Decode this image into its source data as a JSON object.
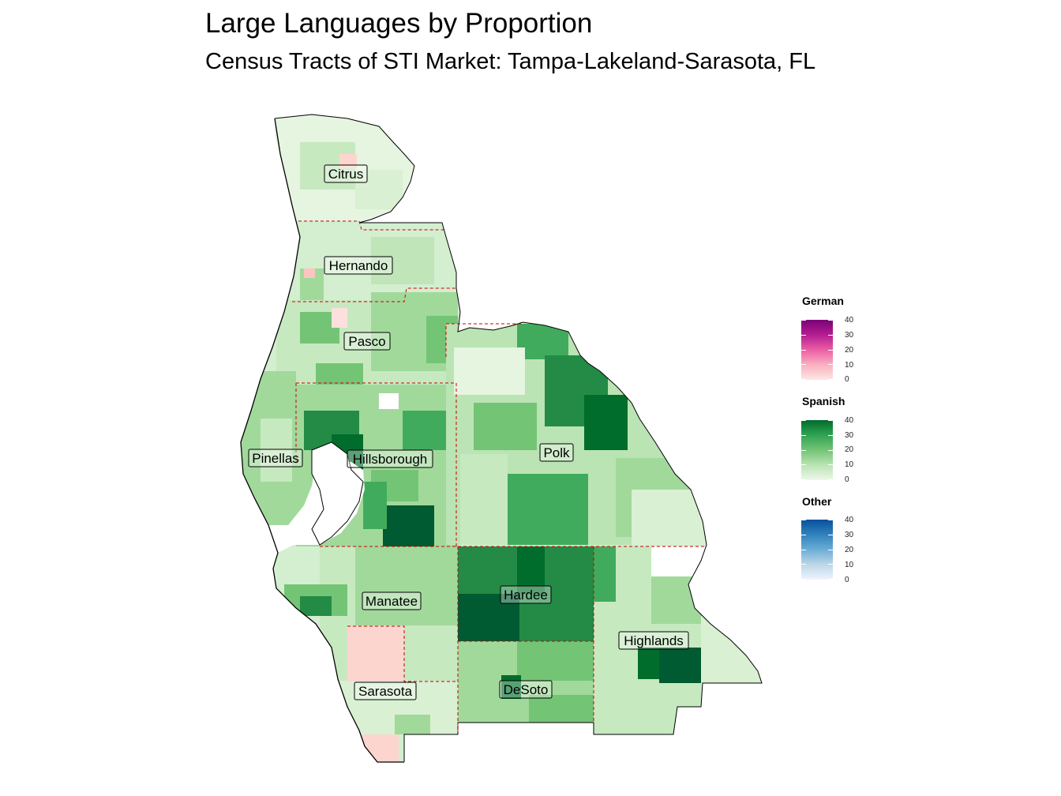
{
  "title": "Large Languages by Proportion",
  "subtitle": "Census Tracts of STI Market: Tampa-Lakeland-Sarasota, FL",
  "counties": [
    {
      "name": "Citrus"
    },
    {
      "name": "Hernando"
    },
    {
      "name": "Pasco"
    },
    {
      "name": "Pinellas"
    },
    {
      "name": "Hillsborough"
    },
    {
      "name": "Polk"
    },
    {
      "name": "Manatee"
    },
    {
      "name": "Hardee"
    },
    {
      "name": "Highlands"
    },
    {
      "name": "Sarasota"
    },
    {
      "name": "DeSoto"
    }
  ],
  "legend": [
    {
      "title": "German",
      "colors": [
        "#fde8e4",
        "#f9b0c0",
        "#ec5ea5",
        "#b41d8f",
        "#7a0177"
      ],
      "ticks": [
        "40",
        "30",
        "20",
        "10",
        "0"
      ]
    },
    {
      "title": "Spanish",
      "colors": [
        "#edf8e9",
        "#bae4b3",
        "#74c476",
        "#31a354",
        "#006d2c"
      ],
      "ticks": [
        "40",
        "30",
        "20",
        "10",
        "0"
      ]
    },
    {
      "title": "Other",
      "colors": [
        "#eff3ff",
        "#bdd7e7",
        "#6baed6",
        "#3182bd",
        "#08519c"
      ],
      "ticks": [
        "40",
        "30",
        "20",
        "10",
        "0"
      ]
    }
  ],
  "colors": {
    "county_border": "#cc0000",
    "coast": "#000000",
    "land_base": "#c7e9c0"
  }
}
